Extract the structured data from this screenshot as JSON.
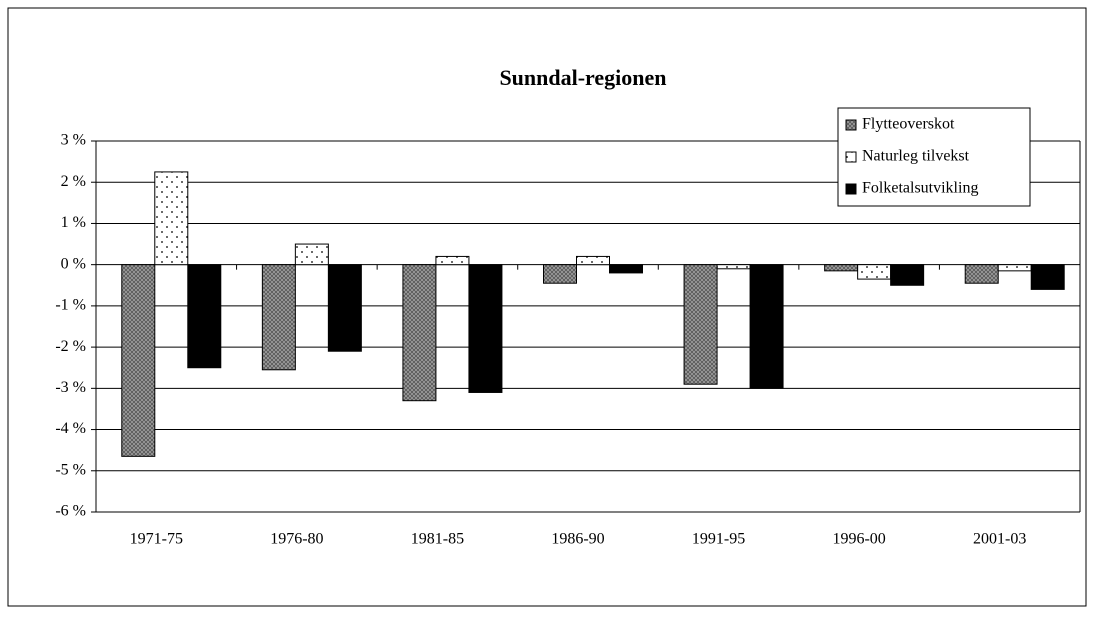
{
  "chart_data": {
    "type": "bar",
    "title": "Sunndal-regionen",
    "categories": [
      "1971-75",
      "1976-80",
      "1981-85",
      "1986-90",
      "1991-95",
      "1996-00",
      "2001-03"
    ],
    "series": [
      {
        "name": "Flytteoverskot",
        "color": "#a0a0a0",
        "pattern": "crosshatch",
        "values": [
          -4.65,
          -2.55,
          -3.3,
          -0.45,
          -2.9,
          -0.15,
          -0.45
        ]
      },
      {
        "name": "Naturleg tilvekst",
        "color": "#ffffff",
        "pattern": "dots",
        "values": [
          2.25,
          0.5,
          0.2,
          0.2,
          -0.1,
          -0.35,
          -0.15
        ]
      },
      {
        "name": "Folketalsutvikling",
        "color": "#000000",
        "pattern": "solid",
        "values": [
          -2.5,
          -2.1,
          -3.1,
          -0.2,
          -3.0,
          -0.5,
          -0.6
        ]
      }
    ],
    "ylim": [
      -6,
      3
    ],
    "yticks": [
      {
        "value": -6,
        "label": "-6 %"
      },
      {
        "value": -5,
        "label": "-5 %"
      },
      {
        "value": -4,
        "label": "-4 %"
      },
      {
        "value": -3,
        "label": "-3 %"
      },
      {
        "value": -2,
        "label": "-2 %"
      },
      {
        "value": -1,
        "label": "-1 %"
      },
      {
        "value": 0,
        "label": "0 %"
      },
      {
        "value": 1,
        "label": "1 %"
      },
      {
        "value": 2,
        "label": "2 %"
      },
      {
        "value": 3,
        "label": "3 %"
      }
    ],
    "grid": true,
    "legend": "top-right"
  }
}
